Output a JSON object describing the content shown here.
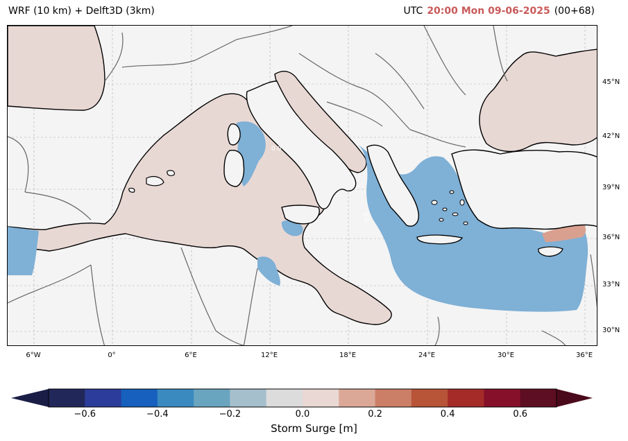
{
  "header": {
    "title_left": "WRF (10 km) + Delft3D (3km)",
    "utc_prefix": "UTC",
    "time": "20:00 Mon 09-06-2025",
    "lead": "(00+68)",
    "time_color": "#c85a5a"
  },
  "map": {
    "region": "Mediterranean Sea",
    "variable": "Storm Surge",
    "lat_labels": [
      "45°N",
      "42°N",
      "39°N",
      "36°N",
      "33°N",
      "30°N"
    ],
    "lon_labels": [
      "6°W",
      "0°",
      "6°E",
      "12°E",
      "18°E",
      "24°E",
      "30°E",
      "36°E"
    ],
    "contour_label": "0.0",
    "colors": {
      "land": "#f4f4f4",
      "positive_surge": "#e8d8d4",
      "negative_surge": "#7fb0d6",
      "strong_positive": "#d9a090",
      "coastline": "#000000",
      "borders": "#666666",
      "gridlines": "#aaaaaa"
    }
  },
  "colorbar": {
    "label": "Storm Surge [m]",
    "ticks": [
      "−0.6",
      "−0.4",
      "−0.2",
      "0.0",
      "0.2",
      "0.4",
      "0.6"
    ],
    "tick_values": [
      -0.6,
      -0.4,
      -0.2,
      0.0,
      0.2,
      0.4,
      0.6
    ],
    "bin_min": -0.7,
    "bin_max": 0.7,
    "bin_step": 0.1,
    "extend": "both",
    "colors": [
      "#22275a",
      "#2c3c9a",
      "#1760bd",
      "#3a8ac0",
      "#6aa5c0",
      "#a6bfcc",
      "#dcdcdc",
      "#ead8d4",
      "#dba898",
      "#cc7f67",
      "#b85438",
      "#a42b28",
      "#86102a",
      "#5e0e22"
    ],
    "under_color": "#1a1d45",
    "over_color": "#4b0a1b"
  }
}
